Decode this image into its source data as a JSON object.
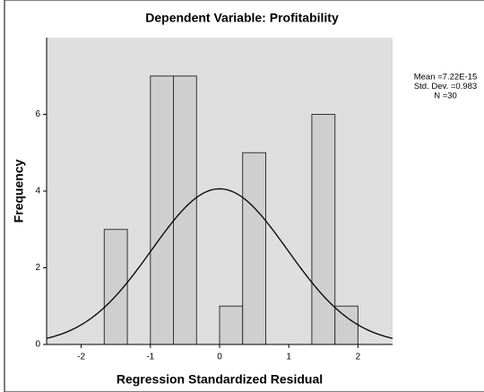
{
  "chart_data": {
    "type": "histogram",
    "title": "Dependent Variable: Profitability",
    "x_label": "Regression Standardized Residual",
    "y_label": "Frequency",
    "bins": [
      -1.667,
      -1.333,
      -1,
      -0.667,
      -0.333,
      0,
      0.333,
      0.667,
      1,
      1.333,
      1.667,
      2
    ],
    "values": [
      3,
      0,
      7,
      7,
      0,
      1,
      5,
      0,
      0,
      6,
      1
    ],
    "color": "#cfcfcf",
    "xlim": [
      -2.5,
      2.5
    ],
    "xticks": [
      -2,
      -1,
      0,
      1,
      2
    ],
    "ylim": [
      0,
      8
    ],
    "yticks": [
      0,
      2,
      4,
      6
    ],
    "normal_curve": {
      "mean": 7.22e-15,
      "std_dev": 0.983,
      "n": 30,
      "labels": [
        "Mean =7.22E-15",
        "Std. Dev. =0.983",
        "N =30"
      ]
    }
  }
}
